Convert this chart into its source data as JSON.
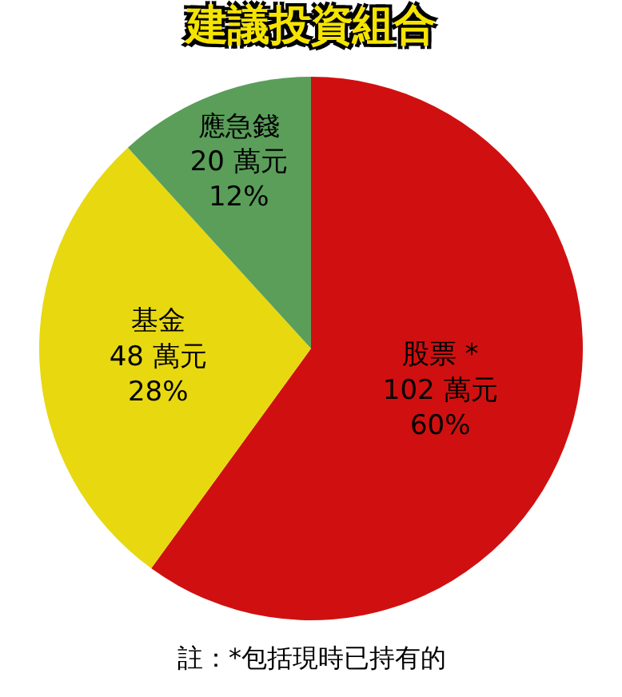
{
  "chart_data": {
    "type": "pie",
    "title": "建議投資組合",
    "categories": [
      "股票 *",
      "基金",
      "應急錢"
    ],
    "values": [
      102,
      48,
      20
    ],
    "value_labels": [
      "102 萬元\n60%",
      "48 萬元\n28%",
      "20 萬元\n12%"
    ],
    "colors": [
      "#d01010",
      "#e8d810",
      "#5a9e5a"
    ],
    "legend": false,
    "annotations": [
      "註：*包括現時已持有的"
    ]
  }
}
